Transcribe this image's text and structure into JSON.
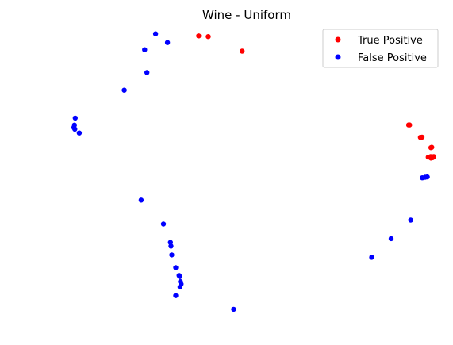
{
  "chart_data": {
    "type": "scatter",
    "title": "Wine - Uniform",
    "xlabel": "",
    "ylabel": "",
    "axes_visible": false,
    "grid": false,
    "legend_position": "top-right",
    "xlim": [
      -1.05,
      1.05
    ],
    "ylim": [
      -1.05,
      1.05
    ],
    "series": [
      {
        "name": "True Positive",
        "color": "#ff0000",
        "points": [
          [
            -0.248,
            0.958
          ],
          [
            -0.198,
            0.953
          ],
          [
            -0.022,
            0.85
          ],
          [
            0.844,
            0.326
          ],
          [
            0.849,
            0.326
          ],
          [
            0.905,
            0.238
          ],
          [
            0.914,
            0.24
          ],
          [
            0.96,
            0.165
          ],
          [
            0.964,
            0.168
          ],
          [
            0.946,
            0.098
          ],
          [
            0.959,
            0.102
          ],
          [
            0.966,
            0.101
          ],
          [
            0.975,
            0.102
          ],
          [
            0.961,
            0.091
          ],
          [
            0.968,
            0.094
          ]
        ]
      },
      {
        "name": "False Positive",
        "color": "#0000ff",
        "points": [
          [
            -0.472,
            0.973
          ],
          [
            -0.41,
            0.911
          ],
          [
            -0.529,
            0.86
          ],
          [
            -0.517,
            0.698
          ],
          [
            -0.635,
            0.573
          ],
          [
            -0.89,
            0.375
          ],
          [
            -0.894,
            0.325
          ],
          [
            -0.897,
            0.308
          ],
          [
            -0.892,
            0.296
          ],
          [
            -0.869,
            0.269
          ],
          [
            -0.547,
            -0.207
          ],
          [
            -0.431,
            -0.377
          ],
          [
            -0.395,
            -0.508
          ],
          [
            -0.392,
            -0.534
          ],
          [
            -0.388,
            -0.596
          ],
          [
            -0.367,
            -0.687
          ],
          [
            -0.35,
            -0.742
          ],
          [
            -0.346,
            -0.75
          ],
          [
            -0.343,
            -0.786
          ],
          [
            -0.339,
            -0.803
          ],
          [
            -0.345,
            -0.824
          ],
          [
            -0.367,
            -0.885
          ],
          [
            -0.066,
            -0.982
          ],
          [
            0.652,
            -0.613
          ],
          [
            0.753,
            -0.481
          ],
          [
            0.855,
            -0.349
          ],
          [
            0.915,
            -0.049
          ],
          [
            0.93,
            -0.045
          ],
          [
            0.941,
            -0.043
          ]
        ]
      }
    ]
  }
}
